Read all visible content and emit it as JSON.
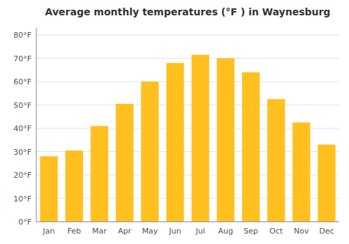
{
  "chart_data": {
    "type": "bar",
    "title": "Average monthly temperatures (°F ) in Waynesburg",
    "categories": [
      "Jan",
      "Feb",
      "Mar",
      "Apr",
      "May",
      "Jun",
      "Jul",
      "Aug",
      "Sep",
      "Oct",
      "Nov",
      "Dec"
    ],
    "values": [
      28,
      30.5,
      41,
      50.5,
      60,
      68,
      71.5,
      70,
      64,
      52.5,
      42.5,
      33
    ],
    "color": "#FFC020",
    "ylim": [
      0,
      83
    ],
    "yticks": [
      {
        "value": 0,
        "label": "0°F"
      },
      {
        "value": 10,
        "label": "10°F"
      },
      {
        "value": 20,
        "label": "20°F"
      },
      {
        "value": 30,
        "label": "30°F"
      },
      {
        "value": 40,
        "label": "40°F"
      },
      {
        "value": 50,
        "label": "50°F"
      },
      {
        "value": 60,
        "label": "60°F"
      },
      {
        "value": 70,
        "label": "70°F"
      },
      {
        "value": 80,
        "label": "80°F"
      }
    ],
    "grid": true
  }
}
